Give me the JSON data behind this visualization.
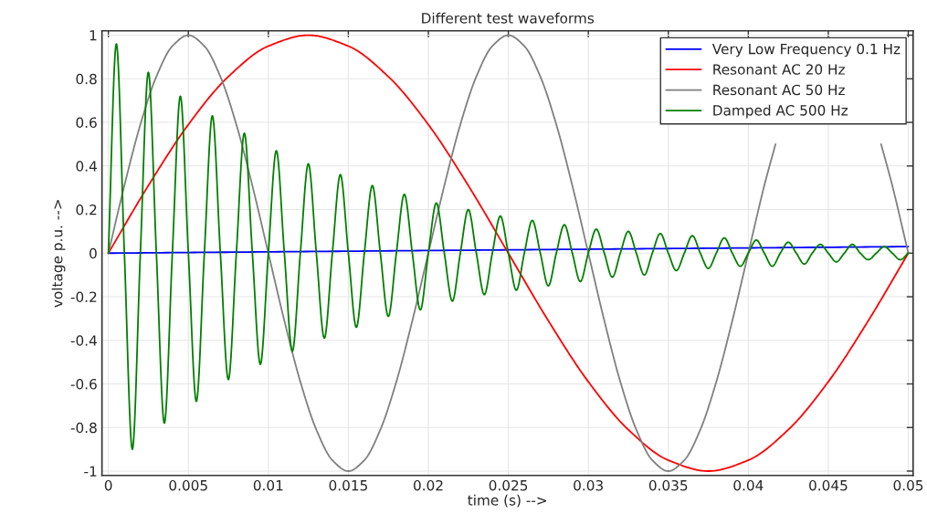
{
  "chart_data": {
    "type": "line",
    "title": "Different test waveforms",
    "xlabel": "time (s) -->",
    "ylabel": "voltage p.u. -->",
    "xlim": [
      -0.0004,
      0.0503
    ],
    "ylim": [
      -1.02,
      1.02
    ],
    "xticks": [
      0,
      0.005,
      0.01,
      0.015,
      0.02,
      0.025,
      0.03,
      0.035,
      0.04,
      0.045,
      0.05
    ],
    "yticks": [
      -1,
      -0.8,
      -0.6,
      -0.4,
      -0.2,
      0,
      0.2,
      0.4,
      0.6,
      0.8,
      1
    ],
    "grid": true,
    "legend": "top right",
    "line_style": "solid",
    "marker": "none",
    "series": [
      {
        "name": "Very Low Frequency 0.1 Hz",
        "color": "#0000ff",
        "x": [
          0,
          0.01,
          0.02,
          0.03,
          0.04,
          0.05
        ],
        "values": [
          0,
          0.006,
          0.012,
          0.018,
          0.024,
          0.03
        ]
      },
      {
        "name": "Resonant AC 20 Hz",
        "color": "#ff0000",
        "x": [
          0,
          0.0025,
          0.005,
          0.0075,
          0.01,
          0.0125,
          0.015,
          0.0175,
          0.02,
          0.0225,
          0.025,
          0.0275,
          0.03,
          0.0325,
          0.035,
          0.0375,
          0.04,
          0.0425,
          0.045,
          0.0475,
          0.05
        ],
        "values": [
          0,
          0.31,
          0.59,
          0.81,
          0.95,
          1,
          0.95,
          0.81,
          0.59,
          0.31,
          0,
          -0.31,
          -0.59,
          -0.81,
          -0.95,
          -1,
          -0.95,
          -0.81,
          -0.59,
          -0.31,
          0
        ]
      },
      {
        "name": "Resonant AC 50 Hz",
        "color": "#808080",
        "x": [
          0,
          0.001,
          0.002,
          0.003,
          0.004,
          0.005,
          0.006,
          0.007,
          0.008,
          0.009,
          0.01,
          0.011,
          0.012,
          0.013,
          0.014,
          0.015,
          0.016,
          0.017,
          0.018,
          0.019,
          0.02,
          0.021,
          0.022,
          0.023,
          0.024,
          0.025,
          0.026,
          0.027,
          0.028,
          0.029,
          0.03,
          0.031,
          0.032,
          0.033,
          0.034,
          0.035,
          0.036,
          0.037,
          0.038,
          0.039,
          0.04,
          0.041,
          0.0417,
          0.042,
          0.043,
          0.044,
          0.045,
          0.046,
          0.047,
          0.048,
          0.0483,
          0.049,
          0.05
        ],
        "values": [
          0,
          0.31,
          0.59,
          0.81,
          0.95,
          1,
          0.95,
          0.81,
          0.59,
          0.31,
          0,
          -0.31,
          -0.59,
          -0.81,
          -0.95,
          -1,
          -0.95,
          -0.81,
          -0.59,
          -0.31,
          0,
          0.31,
          0.59,
          0.81,
          0.95,
          1,
          0.95,
          0.81,
          0.59,
          0.31,
          0,
          -0.31,
          -0.59,
          -0.81,
          -0.95,
          -1,
          -0.95,
          -0.81,
          -0.59,
          -0.31,
          0,
          0.31,
          0.5,
          null,
          null,
          null,
          null,
          null,
          null,
          null,
          0.5,
          0.31,
          0
        ]
      },
      {
        "name": "Damped AC 500 Hz",
        "color": "#008000",
        "x": [
          0,
          0.0005,
          0.001,
          0.0015,
          0.002,
          0.0025,
          0.003,
          0.0035,
          0.004,
          0.0045,
          0.005,
          0.0055,
          0.006,
          0.0065,
          0.007,
          0.0075,
          0.008,
          0.0085,
          0.009,
          0.0095,
          0.01,
          0.0105,
          0.011,
          0.0115,
          0.012,
          0.0125,
          0.013,
          0.0135,
          0.014,
          0.0145,
          0.015,
          0.0155,
          0.016,
          0.0165,
          0.017,
          0.0175,
          0.018,
          0.0185,
          0.019,
          0.0195,
          0.02,
          0.0205,
          0.021,
          0.0215,
          0.022,
          0.0225,
          0.023,
          0.0235,
          0.024,
          0.0245,
          0.025,
          0.0255,
          0.026,
          0.0265,
          0.027,
          0.0275,
          0.028,
          0.0285,
          0.029,
          0.0295,
          0.03,
          0.0305,
          0.031,
          0.0315,
          0.032,
          0.0325,
          0.033,
          0.0335,
          0.034,
          0.0345,
          0.035,
          0.0355,
          0.036,
          0.0365,
          0.037,
          0.0375,
          0.038,
          0.0385,
          0.039,
          0.0395,
          0.04,
          0.0405,
          0.041,
          0.0415,
          0.042,
          0.0425,
          0.043,
          0.0435,
          0.044,
          0.0445,
          0.045,
          0.0455,
          0.046,
          0.0465,
          0.047,
          0.0475,
          0.048,
          0.0485,
          0.049,
          0.0495,
          0.05
        ],
        "values": [
          0,
          0.96,
          0,
          -0.9,
          0,
          0.83,
          0,
          -0.78,
          0,
          0.72,
          0,
          -0.68,
          0,
          0.63,
          0,
          -0.58,
          0,
          0.55,
          0,
          -0.51,
          0,
          0.47,
          0,
          -0.45,
          0,
          0.41,
          0,
          -0.39,
          0,
          0.36,
          0,
          -0.34,
          0,
          0.31,
          0,
          -0.29,
          0,
          0.27,
          0,
          -0.26,
          0,
          0.23,
          0,
          -0.22,
          0,
          0.2,
          0,
          -0.19,
          0,
          0.17,
          0,
          -0.17,
          0,
          0.15,
          0,
          -0.15,
          0,
          0.13,
          0,
          -0.13,
          0,
          0.11,
          0,
          -0.11,
          0,
          0.1,
          0,
          -0.1,
          0,
          0.09,
          0,
          -0.08,
          0,
          0.08,
          0,
          -0.07,
          0,
          0.07,
          0,
          -0.06,
          0,
          0.06,
          0,
          -0.06,
          0,
          0.05,
          0,
          -0.05,
          0,
          0.04,
          0,
          -0.04,
          0,
          0.04,
          0,
          -0.03,
          0,
          0.03,
          0,
          -0.03,
          0
        ]
      }
    ]
  }
}
